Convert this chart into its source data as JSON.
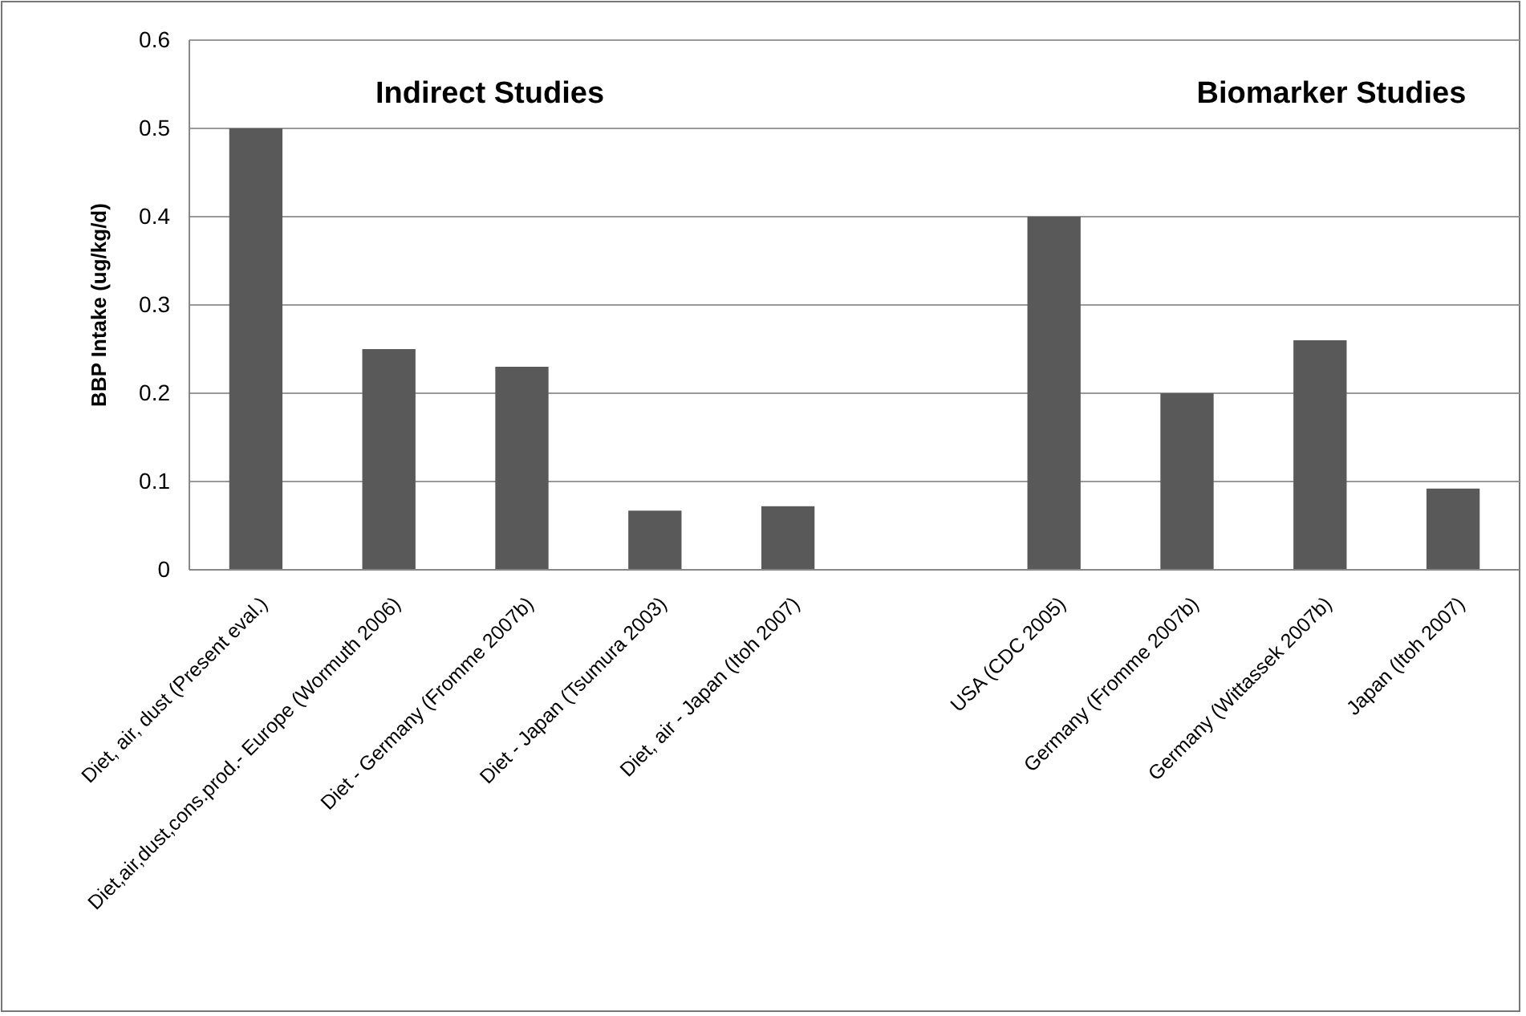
{
  "chart_data": {
    "type": "bar",
    "ylabel": "BBP Intake (ug/kg/d)",
    "categories": [
      "Diet, air, dust (Present eval.)",
      "Diet,air,dust,cons.prod.- Europe (Wormuth 2006)",
      "Diet - Germany (Fromme 2007b)",
      "Diet - Japan (Tsumura 2003)",
      "Diet, air - Japan (Itoh 2007)",
      null,
      "USA (CDC 2005)",
      "Germany (Fromme 2007b)",
      "Germany (Wittassek 2007b)",
      "Japan (Itoh 2007)"
    ],
    "values": [
      0.5,
      0.25,
      0.23,
      0.067,
      0.072,
      null,
      0.4,
      0.2,
      0.26,
      0.092
    ],
    "color": "#595959",
    "ylim": [
      0,
      0.6
    ],
    "yticks": [
      0,
      0.1,
      0.2,
      0.3,
      0.4,
      0.5,
      0.6
    ],
    "grid": "y",
    "annotations": [
      "Indirect Studies",
      "Biomarker Studies"
    ]
  }
}
